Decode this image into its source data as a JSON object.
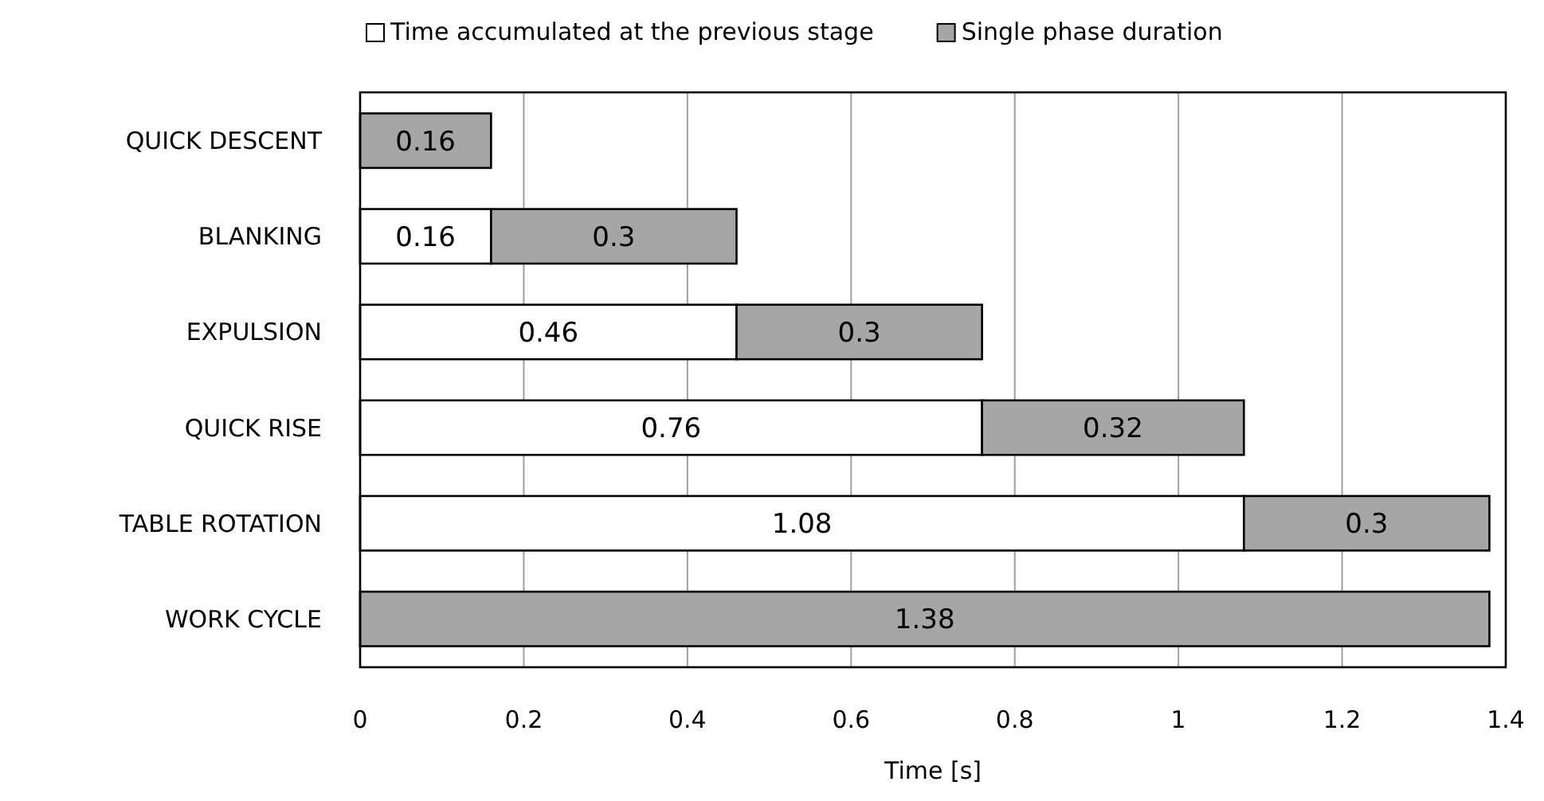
{
  "chart_data": {
    "type": "bar",
    "orientation": "horizontal",
    "stacked": true,
    "xlabel": "Time [s]",
    "categories": [
      "QUICK DESCENT",
      "BLANKING",
      "EXPULSION",
      "QUICK RISE",
      "TABLE ROTATION",
      "WORK CYCLE"
    ],
    "series": [
      {
        "name": "Time accumulated at the previous stage",
        "color": "#ffffff",
        "values": [
          null,
          0.16,
          0.46,
          0.76,
          1.08,
          null
        ]
      },
      {
        "name": "Single phase duration",
        "color": "#a6a6a6",
        "values": [
          0.16,
          0.3,
          0.3,
          0.32,
          0.3,
          1.38
        ]
      }
    ],
    "xlim": [
      0,
      1.4
    ],
    "xticks": [
      0,
      0.2,
      0.4,
      0.6,
      0.8,
      1,
      1.2,
      1.4
    ],
    "grid": "x",
    "legend": "top",
    "data_labels": true
  }
}
